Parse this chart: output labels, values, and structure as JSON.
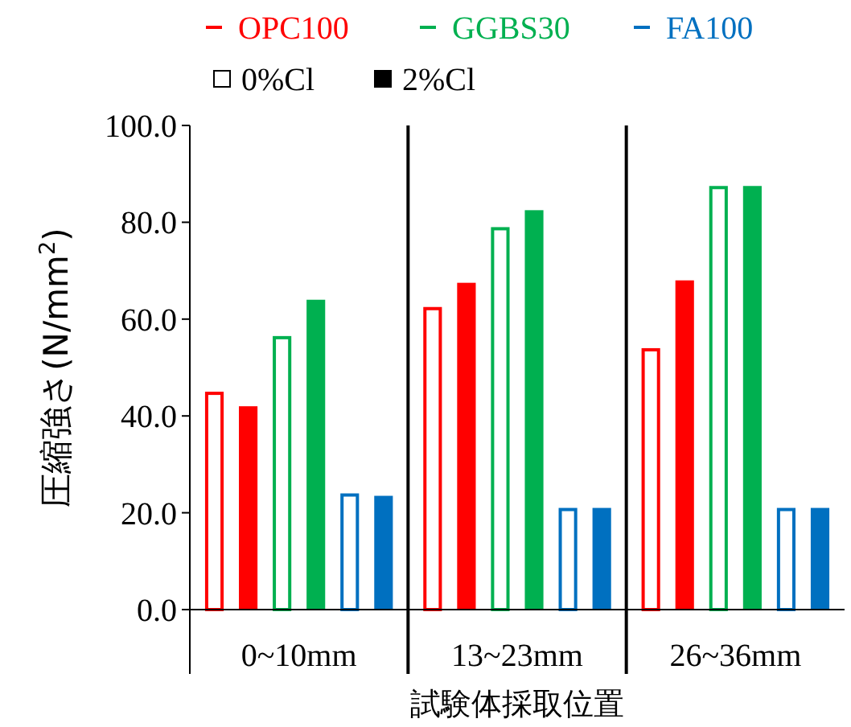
{
  "chart_data": {
    "type": "bar",
    "xlabel": "試験体採取位置",
    "ylabel": "圧縮強さ(N/mm$^{2}$)",
    "categories": [
      "0~10mm",
      "13~23mm",
      "26~36mm"
    ],
    "series": [
      {
        "name": "OPC100",
        "color": "#ff0000",
        "values": [
          45,
          62.5,
          54
        ]
      },
      {
        "color": "#ff0000",
        "values": [
          42,
          67.5,
          68
        ]
      },
      {
        "name": "GGBS30",
        "color": "#00b050",
        "values": [
          56.5,
          79,
          87.5
        ]
      },
      {
        "color": "#00b050",
        "values": [
          64,
          82.5,
          87.5
        ]
      },
      {
        "name": "FA100",
        "color": "#0070c0",
        "values": [
          24,
          21,
          21
        ]
      },
      {
        "color": "#0070c0",
        "values": [
          23.5,
          21,
          21
        ]
      }
    ],
    "annotations": [
      "0%Cl",
      "2%Cl"
    ],
    "ylim": [
      0,
      100
    ],
    "yticks": [
      {
        "value": 0,
        "label": "0.0"
      },
      {
        "value": 20,
        "label": "20.0"
      },
      {
        "value": 40,
        "label": "40.0"
      },
      {
        "value": 60,
        "label": "60.0"
      },
      {
        "value": 80,
        "label": "80.0"
      },
      {
        "value": 100,
        "label": "100.0"
      }
    ],
    "grid": false,
    "legend": "top"
  }
}
